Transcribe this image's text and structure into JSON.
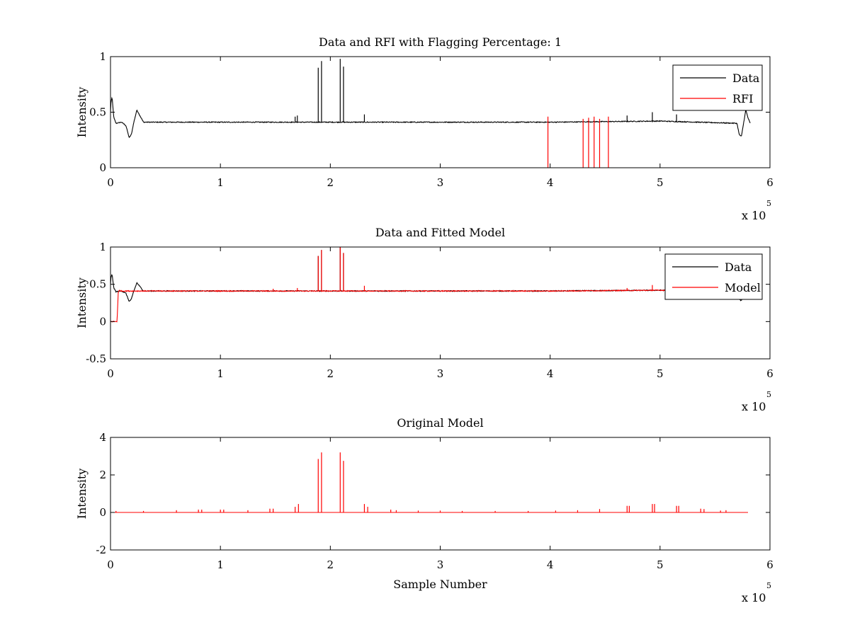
{
  "chart_data": [
    {
      "type": "line",
      "title": "Data and RFI with Flagging Percentage: 1",
      "xlabel": "",
      "ylabel": "Intensity",
      "xlim": [
        0,
        6
      ],
      "ylim": [
        0,
        1
      ],
      "x_scale_label": "x 10",
      "x_scale_exponent": "5",
      "xticks": [
        "0",
        "1",
        "2",
        "3",
        "4",
        "5",
        "6"
      ],
      "yticks": [
        "0",
        "0.5",
        "1"
      ],
      "ytick_values": [
        0,
        0.5,
        1
      ],
      "grid": false,
      "legend": "top-right",
      "series": [
        {
          "name": "Data",
          "color": "#000000",
          "baseline": 0.41,
          "x": [
            0,
            0.005,
            0.015,
            0.03,
            0.05,
            0.1,
            0.14,
            0.17,
            0.19,
            0.21,
            0.24,
            0.3,
            1,
            2,
            3,
            4,
            5,
            5.7,
            5.72,
            5.74,
            5.76,
            5.78,
            5.8,
            5.82
          ],
          "y": [
            0.5,
            0.6,
            0.63,
            0.45,
            0.4,
            0.41,
            0.38,
            0.27,
            0.3,
            0.4,
            0.52,
            0.41,
            0.41,
            0.41,
            0.41,
            0.41,
            0.42,
            0.4,
            0.3,
            0.28,
            0.4,
            0.52,
            0.45,
            0.4
          ],
          "spikes": [
            {
              "x": 1.89,
              "y": 0.9
            },
            {
              "x": 1.92,
              "y": 0.96
            },
            {
              "x": 2.09,
              "y": 0.98
            },
            {
              "x": 2.12,
              "y": 0.91
            },
            {
              "x": 1.7,
              "y": 0.47
            },
            {
              "x": 1.68,
              "y": 0.46
            },
            {
              "x": 2.31,
              "y": 0.48
            },
            {
              "x": 4.93,
              "y": 0.5
            },
            {
              "x": 4.7,
              "y": 0.47
            },
            {
              "x": 5.15,
              "y": 0.48
            }
          ]
        },
        {
          "name": "RFI",
          "color": "#ff0000",
          "spikes": [
            {
              "x": 3.98,
              "y": 0.46
            },
            {
              "x": 4.3,
              "y": 0.44
            },
            {
              "x": 4.35,
              "y": 0.45
            },
            {
              "x": 4.4,
              "y": 0.46
            },
            {
              "x": 4.45,
              "y": 0.44
            },
            {
              "x": 4.53,
              "y": 0.46
            }
          ]
        }
      ]
    },
    {
      "type": "line",
      "title": "Data and Fitted Model",
      "xlabel": "",
      "ylabel": "Intensity",
      "xlim": [
        0,
        6
      ],
      "ylim": [
        -0.5,
        1
      ],
      "x_scale_label": "x 10",
      "x_scale_exponent": "5",
      "xticks": [
        "0",
        "1",
        "2",
        "3",
        "4",
        "5",
        "6"
      ],
      "yticks": [
        "-0.5",
        "0",
        "0.5",
        "1"
      ],
      "ytick_values": [
        -0.5,
        0,
        0.5,
        1
      ],
      "grid": false,
      "legend": "top-right",
      "series": [
        {
          "name": "Data",
          "color": "#000000",
          "baseline": 0.41,
          "x": [
            0,
            0.005,
            0.015,
            0.03,
            0.05,
            0.1,
            0.14,
            0.17,
            0.19,
            0.21,
            0.24,
            0.3,
            1,
            2,
            3,
            4,
            5,
            5.7,
            5.72,
            5.74,
            5.76,
            5.78,
            5.8
          ],
          "y": [
            0.5,
            0.6,
            0.63,
            0.45,
            0.4,
            0.41,
            0.38,
            0.27,
            0.3,
            0.4,
            0.52,
            0.41,
            0.41,
            0.41,
            0.41,
            0.41,
            0.42,
            0.4,
            0.3,
            0.28,
            0.4,
            0.52,
            0.45
          ],
          "spikes": [
            {
              "x": 1.89,
              "y": 0.88
            },
            {
              "x": 1.92,
              "y": 0.96
            },
            {
              "x": 2.09,
              "y": 1.0
            },
            {
              "x": 2.12,
              "y": 0.92
            }
          ]
        },
        {
          "name": "Model",
          "color": "#ff0000",
          "baseline": 0.41,
          "x": [
            0,
            0.06,
            0.065,
            0.07,
            0.08,
            0.1,
            0.3,
            1,
            2,
            3,
            4,
            5,
            5.8
          ],
          "y": [
            0.0,
            0.0,
            0.2,
            0.38,
            0.42,
            0.41,
            0.41,
            0.41,
            0.41,
            0.41,
            0.41,
            0.42,
            0.42
          ],
          "spikes": [
            {
              "x": 1.89,
              "y": 0.88
            },
            {
              "x": 1.92,
              "y": 0.96
            },
            {
              "x": 2.09,
              "y": 1.0
            },
            {
              "x": 2.12,
              "y": 0.92
            },
            {
              "x": 2.31,
              "y": 0.48
            },
            {
              "x": 1.48,
              "y": 0.44
            },
            {
              "x": 1.7,
              "y": 0.45
            },
            {
              "x": 4.93,
              "y": 0.49
            },
            {
              "x": 4.7,
              "y": 0.45
            },
            {
              "x": 5.15,
              "y": 0.45
            }
          ]
        }
      ]
    },
    {
      "type": "line",
      "title": "Original Model",
      "xlabel": "Sample Number",
      "ylabel": "Intensity",
      "xlim": [
        0,
        6
      ],
      "ylim": [
        -2,
        4
      ],
      "x_scale_label": "x 10",
      "x_scale_exponent": "5",
      "xticks": [
        "0",
        "1",
        "2",
        "3",
        "4",
        "5",
        "6"
      ],
      "yticks": [
        "-2",
        "0",
        "2",
        "4"
      ],
      "ytick_values": [
        -2,
        0,
        2,
        4
      ],
      "grid": false,
      "legend": "none",
      "series": [
        {
          "color": "#ff0000",
          "baseline": 0.0,
          "x": [
            0,
            5.8
          ],
          "y": [
            0,
            0
          ],
          "spikes": [
            {
              "x": 1.89,
              "y": 2.85
            },
            {
              "x": 1.92,
              "y": 3.2
            },
            {
              "x": 2.09,
              "y": 3.2
            },
            {
              "x": 2.12,
              "y": 2.75
            },
            {
              "x": 2.31,
              "y": 0.45
            },
            {
              "x": 2.34,
              "y": 0.3
            },
            {
              "x": 1.68,
              "y": 0.3
            },
            {
              "x": 1.71,
              "y": 0.45
            },
            {
              "x": 4.93,
              "y": 0.45
            },
            {
              "x": 4.95,
              "y": 0.45
            },
            {
              "x": 4.7,
              "y": 0.35
            },
            {
              "x": 4.72,
              "y": 0.35
            },
            {
              "x": 5.15,
              "y": 0.35
            },
            {
              "x": 5.17,
              "y": 0.35
            },
            {
              "x": 1.45,
              "y": 0.2
            },
            {
              "x": 1.48,
              "y": 0.2
            },
            {
              "x": 1.0,
              "y": 0.15
            },
            {
              "x": 1.03,
              "y": 0.15
            },
            {
              "x": 0.8,
              "y": 0.15
            },
            {
              "x": 0.83,
              "y": 0.15
            },
            {
              "x": 0.6,
              "y": 0.12
            },
            {
              "x": 1.25,
              "y": 0.12
            },
            {
              "x": 2.55,
              "y": 0.15
            },
            {
              "x": 2.6,
              "y": 0.12
            },
            {
              "x": 2.8,
              "y": 0.1
            },
            {
              "x": 3.0,
              "y": 0.1
            },
            {
              "x": 3.2,
              "y": 0.08
            },
            {
              "x": 3.5,
              "y": 0.08
            },
            {
              "x": 3.8,
              "y": 0.08
            },
            {
              "x": 4.05,
              "y": 0.1
            },
            {
              "x": 4.25,
              "y": 0.12
            },
            {
              "x": 4.45,
              "y": 0.18
            },
            {
              "x": 5.37,
              "y": 0.2
            },
            {
              "x": 5.4,
              "y": 0.18
            },
            {
              "x": 5.6,
              "y": 0.12
            },
            {
              "x": 0.05,
              "y": 0.08
            },
            {
              "x": 0.3,
              "y": 0.08
            },
            {
              "x": 5.55,
              "y": 0.1
            }
          ]
        }
      ]
    }
  ]
}
